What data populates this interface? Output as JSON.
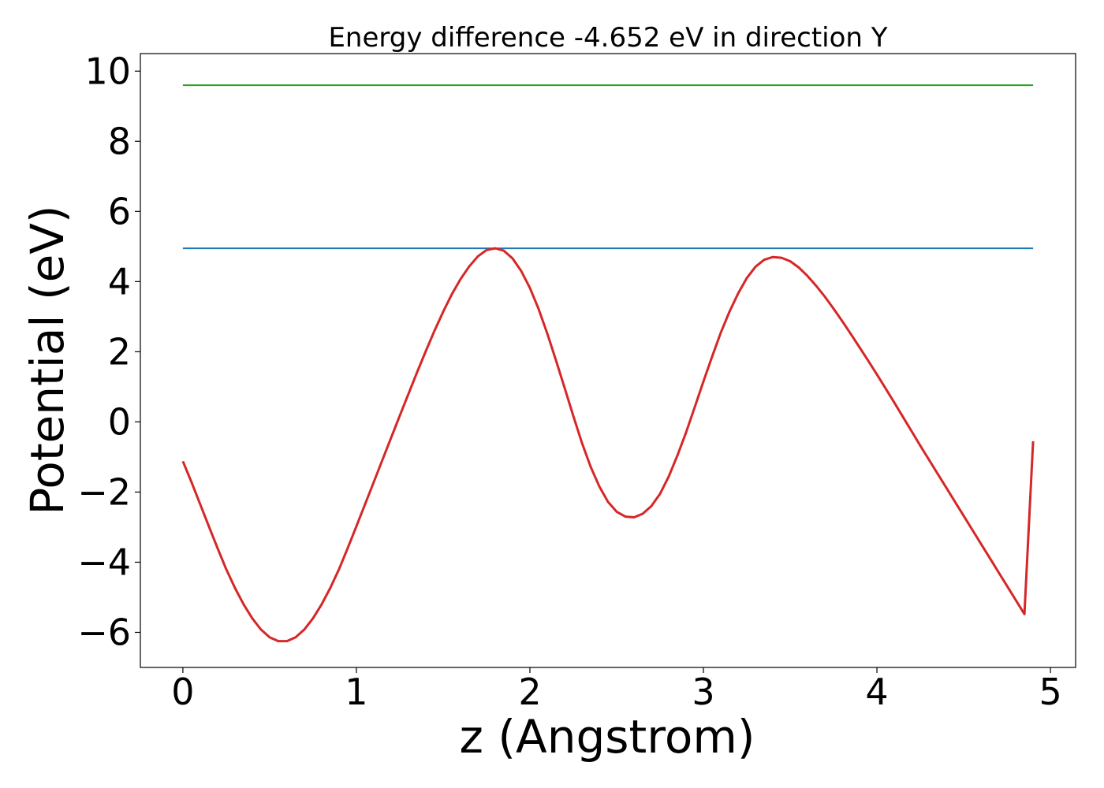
{
  "chart_data": {
    "type": "line",
    "title": "Energy difference -4.652 eV in direction Y",
    "xlabel": "z (Angstrom)",
    "ylabel": "Potential (eV)",
    "xlim": [
      -0.245,
      5.145
    ],
    "ylim": [
      -7.0,
      10.5
    ],
    "xticks": [
      0,
      1,
      2,
      3,
      4,
      5
    ],
    "xtick_labels": [
      "0",
      "1",
      "2",
      "3",
      "4",
      "5"
    ],
    "yticks": [
      -6,
      -4,
      -2,
      0,
      2,
      4,
      6,
      8,
      10
    ],
    "ytick_labels": [
      "−6",
      "−4",
      "−2",
      "0",
      "2",
      "4",
      "6",
      "8",
      "10"
    ],
    "grid": false,
    "series": [
      {
        "color": "#2ca02c",
        "x": [
          0,
          4.9
        ],
        "y": [
          9.6,
          9.6
        ]
      },
      {
        "color": "#1f77b4",
        "x": [
          0,
          4.9
        ],
        "y": [
          4.95,
          4.95
        ]
      },
      {
        "color": "#d62728",
        "x": [
          0.0,
          0.05,
          0.1,
          0.15,
          0.2,
          0.25,
          0.3,
          0.35,
          0.4,
          0.45,
          0.5,
          0.55,
          0.6,
          0.65,
          0.7,
          0.75,
          0.8,
          0.85,
          0.9,
          0.95,
          1.0,
          1.05,
          1.1,
          1.15,
          1.2,
          1.25,
          1.3,
          1.35,
          1.4,
          1.45,
          1.5,
          1.55,
          1.6,
          1.65,
          1.7,
          1.75,
          1.8,
          1.85,
          1.9,
          1.95,
          2.0,
          2.05,
          2.1,
          2.15,
          2.2,
          2.25,
          2.3,
          2.35,
          2.4,
          2.45,
          2.5,
          2.55,
          2.6,
          2.65,
          2.7,
          2.75,
          2.8,
          2.85,
          2.9,
          2.95,
          3.0,
          3.05,
          3.1,
          3.15,
          3.2,
          3.25,
          3.3,
          3.35,
          3.4,
          3.45,
          3.5,
          3.55,
          3.6,
          3.65,
          3.7,
          3.75,
          3.8,
          3.85,
          3.9,
          3.95,
          4.0,
          4.05,
          4.1,
          4.15,
          4.2,
          4.25,
          4.3,
          4.35,
          4.4,
          4.45,
          4.5,
          4.55,
          4.6,
          4.65,
          4.7,
          4.75,
          4.8,
          4.85,
          4.9
        ],
        "y": [
          -1.12,
          -1.72,
          -2.35,
          -2.98,
          -3.6,
          -4.2,
          -4.73,
          -5.2,
          -5.6,
          -5.92,
          -6.14,
          -6.25,
          -6.25,
          -6.14,
          -5.92,
          -5.6,
          -5.2,
          -4.73,
          -4.2,
          -3.6,
          -2.98,
          -2.35,
          -1.72,
          -1.08,
          -0.45,
          0.18,
          0.8,
          1.42,
          2.02,
          2.6,
          3.14,
          3.64,
          4.07,
          4.43,
          4.72,
          4.9,
          4.95,
          4.88,
          4.66,
          4.3,
          3.82,
          3.22,
          2.52,
          1.76,
          0.97,
          0.17,
          -0.6,
          -1.28,
          -1.84,
          -2.28,
          -2.56,
          -2.7,
          -2.72,
          -2.62,
          -2.4,
          -2.05,
          -1.56,
          -0.96,
          -0.3,
          0.42,
          1.15,
          1.86,
          2.54,
          3.14,
          3.66,
          4.1,
          4.42,
          4.62,
          4.7,
          4.68,
          4.58,
          4.4,
          4.16,
          3.88,
          3.57,
          3.23,
          2.87,
          2.5,
          2.12,
          1.74,
          1.35,
          0.95,
          0.55,
          0.14,
          -0.27,
          -0.68,
          -1.08,
          -1.48,
          -1.88,
          -2.28,
          -2.68,
          -3.08,
          -3.48,
          -3.88,
          -4.28,
          -4.68,
          -5.08,
          -5.48,
          -0.55
        ]
      }
    ]
  }
}
